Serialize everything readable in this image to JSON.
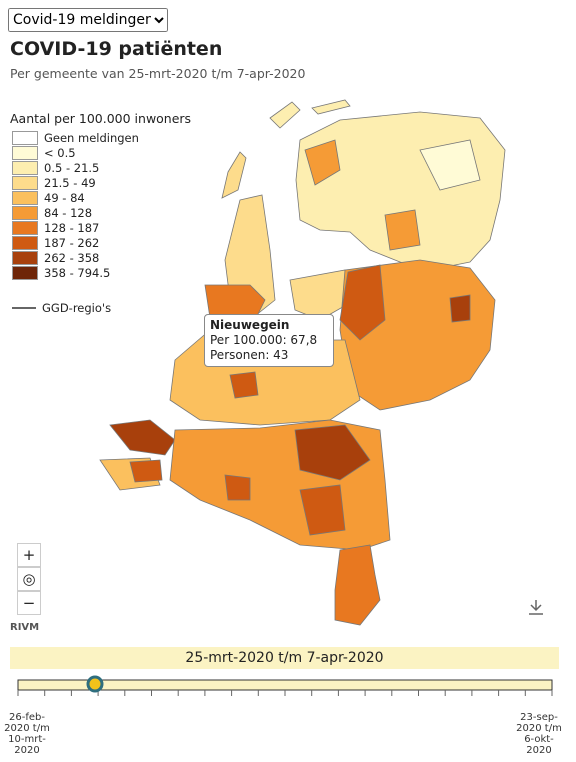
{
  "dropdown": "Covid-19 meldingen",
  "header": {
    "title": "COVID-19 patiënten",
    "subtitle": "Per gemeente van 25-mrt-2020 t/m 7-apr-2020"
  },
  "legend": {
    "title": "Aantal per 100.000 inwoners",
    "items": [
      {
        "label": "Geen meldingen",
        "color": "#ffffff"
      },
      {
        "label": "< 0.5",
        "color": "#fffbd6"
      },
      {
        "label": "0.5 - 21.5",
        "color": "#fdeeb0"
      },
      {
        "label": "21.5 - 49",
        "color": "#fddc8c"
      },
      {
        "label": "49 - 84",
        "color": "#fbc05e"
      },
      {
        "label": "84 - 128",
        "color": "#f59b36"
      },
      {
        "label": "128 - 187",
        "color": "#e87820"
      },
      {
        "label": "187 - 262",
        "color": "#cf5a12"
      },
      {
        "label": "262 - 358",
        "color": "#a8400c"
      },
      {
        "label": "358 - 794.5",
        "color": "#6e2508"
      }
    ],
    "region_line": "GGD-regio's"
  },
  "tooltip": {
    "name": "Nieuwegein",
    "lines": [
      "Per 100.000: 67,8",
      "Personen: 43"
    ]
  },
  "controls": {
    "zoom_in": "+",
    "zoom_out": "−"
  },
  "source": "RIVM",
  "slider": {
    "label": "25-mrt-2020 t/m 7-apr-2020",
    "start": "26-feb-2020 t/m 10-mrt-2020",
    "end": "23-sep-2020 t/m 6-okt-2020"
  }
}
